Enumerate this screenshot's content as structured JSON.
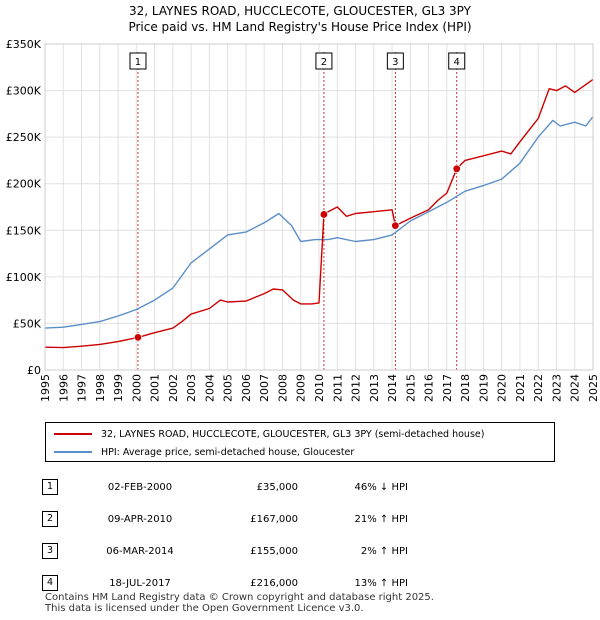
{
  "header": {
    "title": "32, LAYNES ROAD, HUCCLECOTE, GLOUCESTER, GL3 3PY",
    "subtitle": "Price paid vs. HM Land Registry's House Price Index (HPI)"
  },
  "colors": {
    "property": "#cc0000",
    "hpi": "#5b8ec9",
    "marker_line": "#cc0000",
    "grid": "#e0e0e0"
  },
  "chart_data": {
    "type": "line",
    "xlim": [
      1995,
      2025
    ],
    "ylim": [
      0,
      350000
    ],
    "x_ticks": [
      "1995",
      "1996",
      "1997",
      "1998",
      "1999",
      "2000",
      "2001",
      "2002",
      "2003",
      "2004",
      "2005",
      "2006",
      "2007",
      "2008",
      "2009",
      "2010",
      "2011",
      "2012",
      "2013",
      "2014",
      "2015",
      "2016",
      "2017",
      "2018",
      "2019",
      "2020",
      "2021",
      "2022",
      "2023",
      "2024",
      "2025"
    ],
    "y_ticks": [
      {
        "value": 0,
        "label": "£0"
      },
      {
        "value": 50000,
        "label": "£50K"
      },
      {
        "value": 100000,
        "label": "£100K"
      },
      {
        "value": 150000,
        "label": "£150K"
      },
      {
        "value": 200000,
        "label": "£200K"
      },
      {
        "value": 250000,
        "label": "£250K"
      },
      {
        "value": 300000,
        "label": "£300K"
      },
      {
        "value": 350000,
        "label": "£350K"
      }
    ],
    "grid": true,
    "series": [
      {
        "name": "32, LAYNES ROAD, HUCCLECOTE, GLOUCESTER, GL3 3PY (semi-detached house)",
        "color": "#cc0000",
        "points": [
          [
            1995.0,
            24500
          ],
          [
            1996.0,
            24000
          ],
          [
            1997.0,
            25500
          ],
          [
            1998.0,
            27500
          ],
          [
            1999.0,
            30500
          ],
          [
            2000.09,
            35000
          ],
          [
            2001.0,
            40000
          ],
          [
            2002.0,
            45000
          ],
          [
            2002.5,
            52000
          ],
          [
            2003.0,
            60000
          ],
          [
            2004.0,
            66000
          ],
          [
            2004.6,
            75000
          ],
          [
            2005.0,
            73000
          ],
          [
            2006.0,
            74000
          ],
          [
            2007.0,
            82000
          ],
          [
            2007.5,
            87000
          ],
          [
            2008.0,
            86000
          ],
          [
            2008.6,
            75000
          ],
          [
            2009.0,
            71000
          ],
          [
            2009.6,
            71000
          ],
          [
            2010.0,
            72000
          ],
          [
            2010.27,
            167000
          ],
          [
            2010.5,
            170000
          ],
          [
            2011.0,
            175000
          ],
          [
            2011.5,
            165000
          ],
          [
            2012.0,
            168000
          ],
          [
            2013.0,
            170000
          ],
          [
            2014.0,
            172000
          ],
          [
            2014.18,
            155000
          ],
          [
            2014.5,
            158000
          ],
          [
            2015.0,
            163000
          ],
          [
            2016.0,
            172000
          ],
          [
            2016.5,
            182000
          ],
          [
            2017.0,
            190000
          ],
          [
            2017.54,
            216000
          ],
          [
            2018.0,
            225000
          ],
          [
            2019.0,
            230000
          ],
          [
            2020.0,
            235000
          ],
          [
            2020.5,
            232000
          ],
          [
            2021.0,
            245000
          ],
          [
            2022.0,
            270000
          ],
          [
            2022.6,
            302000
          ],
          [
            2023.0,
            300000
          ],
          [
            2023.5,
            305000
          ],
          [
            2024.0,
            298000
          ],
          [
            2024.5,
            305000
          ],
          [
            2025.0,
            312000
          ]
        ]
      },
      {
        "name": "HPI: Average price, semi-detached house, Gloucester",
        "color": "#5b8ec9",
        "points": [
          [
            1995.0,
            45000
          ],
          [
            1996.0,
            46000
          ],
          [
            1997.0,
            49000
          ],
          [
            1998.0,
            52000
          ],
          [
            1999.0,
            58000
          ],
          [
            2000.0,
            65000
          ],
          [
            2001.0,
            75000
          ],
          [
            2002.0,
            88000
          ],
          [
            2003.0,
            115000
          ],
          [
            2004.0,
            130000
          ],
          [
            2005.0,
            145000
          ],
          [
            2006.0,
            148000
          ],
          [
            2007.0,
            158000
          ],
          [
            2007.8,
            168000
          ],
          [
            2008.5,
            155000
          ],
          [
            2009.0,
            138000
          ],
          [
            2009.8,
            140000
          ],
          [
            2010.5,
            140000
          ],
          [
            2011.0,
            142000
          ],
          [
            2012.0,
            138000
          ],
          [
            2013.0,
            140000
          ],
          [
            2014.0,
            145000
          ],
          [
            2015.0,
            160000
          ],
          [
            2016.0,
            170000
          ],
          [
            2017.0,
            180000
          ],
          [
            2018.0,
            192000
          ],
          [
            2019.0,
            198000
          ],
          [
            2020.0,
            205000
          ],
          [
            2021.0,
            222000
          ],
          [
            2022.0,
            250000
          ],
          [
            2022.8,
            268000
          ],
          [
            2023.2,
            262000
          ],
          [
            2024.0,
            266000
          ],
          [
            2024.6,
            262000
          ],
          [
            2025.0,
            272000
          ]
        ]
      }
    ],
    "markers": [
      {
        "label": "1",
        "x": 2000.09,
        "y": 35000
      },
      {
        "label": "2",
        "x": 2010.27,
        "y": 167000
      },
      {
        "label": "3",
        "x": 2014.18,
        "y": 155000
      },
      {
        "label": "4",
        "x": 2017.54,
        "y": 216000
      }
    ]
  },
  "legend": {
    "property_label": "32, LAYNES ROAD, HUCCLECOTE, GLOUCESTER, GL3 3PY (semi-detached house)",
    "hpi_label": "HPI: Average price, semi-detached house, Gloucester"
  },
  "sales": [
    {
      "num": "1",
      "date": "02-FEB-2000",
      "price": "£35,000",
      "hpi": "46% ↓ HPI"
    },
    {
      "num": "2",
      "date": "09-APR-2010",
      "price": "£167,000",
      "hpi": "21% ↑ HPI"
    },
    {
      "num": "3",
      "date": "06-MAR-2014",
      "price": "£155,000",
      "hpi": "2% ↑ HPI"
    },
    {
      "num": "4",
      "date": "18-JUL-2017",
      "price": "£216,000",
      "hpi": "13% ↑ HPI"
    }
  ],
  "footer": {
    "line1": "Contains HM Land Registry data © Crown copyright and database right 2025.",
    "line2": "This data is licensed under the Open Government Licence v3.0."
  }
}
